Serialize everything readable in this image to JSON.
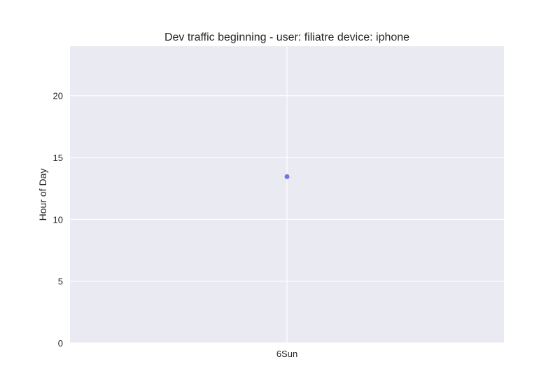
{
  "chart_data": {
    "type": "scatter",
    "title": "Dev traffic beginning - user: filiatre device: iphone",
    "xlabel": "",
    "ylabel": "Hour of Day",
    "categories": [
      "6Sun"
    ],
    "series": [
      {
        "points": [
          {
            "x": "6Sun",
            "y": 13.45
          }
        ]
      }
    ],
    "ylim": [
      0,
      24
    ],
    "yticks": [
      0,
      5,
      10,
      15,
      20
    ],
    "grid": true,
    "style": {
      "plot_background": "#eaeaf2",
      "grid_color": "#ffffff",
      "point_color": "#6f79e3",
      "text_color": "#262626"
    }
  }
}
